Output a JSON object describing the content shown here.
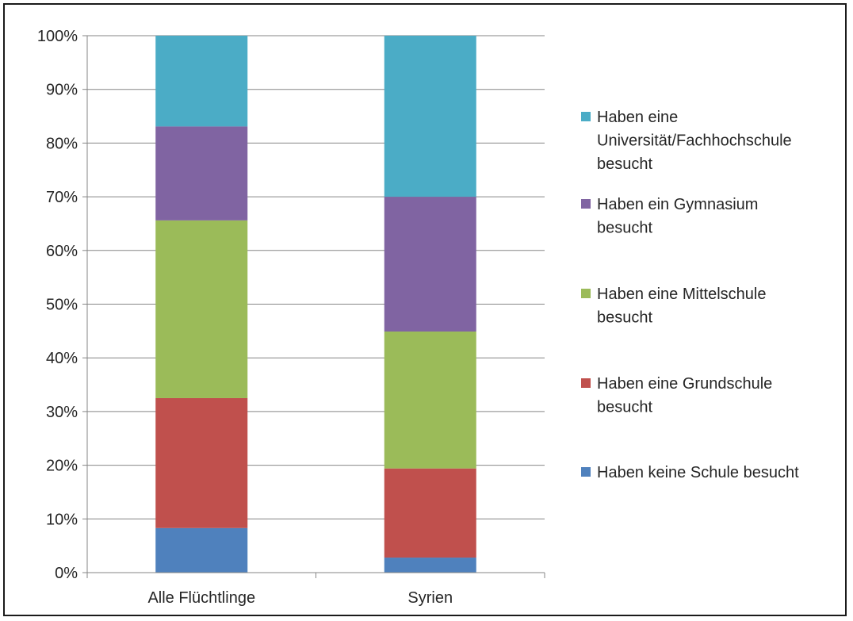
{
  "chart_data": {
    "type": "bar",
    "stacked": true,
    "categories": [
      "Alle Flüchtlinge",
      "Syrien"
    ],
    "series": [
      {
        "name": "Haben keine Schule besucht",
        "color": "#4F81BD",
        "values": [
          8.3,
          2.8
        ]
      },
      {
        "name": "Haben eine Grundschule besucht",
        "color": "#C0504D",
        "values": [
          24.2,
          16.6
        ]
      },
      {
        "name": "Haben eine Mittelschule besucht",
        "color": "#9BBB59",
        "values": [
          33.1,
          25.5
        ]
      },
      {
        "name": "Haben ein Gymnasium besucht",
        "color": "#8064A2",
        "values": [
          17.5,
          25.1
        ]
      },
      {
        "name": "Haben eine Universität/Fachhochschule besucht",
        "color": "#4BACC6",
        "values": [
          16.9,
          30.0
        ]
      }
    ],
    "legend_items": [
      {
        "series": 4,
        "lines": [
          "Haben eine",
          "Universität/Fachhochschule",
          "besucht"
        ]
      },
      {
        "series": 3,
        "lines": [
          "Haben ein Gymnasium",
          "besucht"
        ]
      },
      {
        "series": 2,
        "lines": [
          "Haben eine Mittelschule",
          "besucht"
        ]
      },
      {
        "series": 1,
        "lines": [
          "Haben eine Grundschule",
          "besucht"
        ]
      },
      {
        "series": 0,
        "lines": [
          "Haben keine Schule besucht"
        ]
      }
    ],
    "yticks": [
      "0%",
      "10%",
      "20%",
      "30%",
      "40%",
      "50%",
      "60%",
      "70%",
      "80%",
      "90%",
      "100%"
    ],
    "ylim": [
      0,
      100
    ],
    "grid": true,
    "legend": "right",
    "title": "",
    "xlabel": "",
    "ylabel": ""
  }
}
